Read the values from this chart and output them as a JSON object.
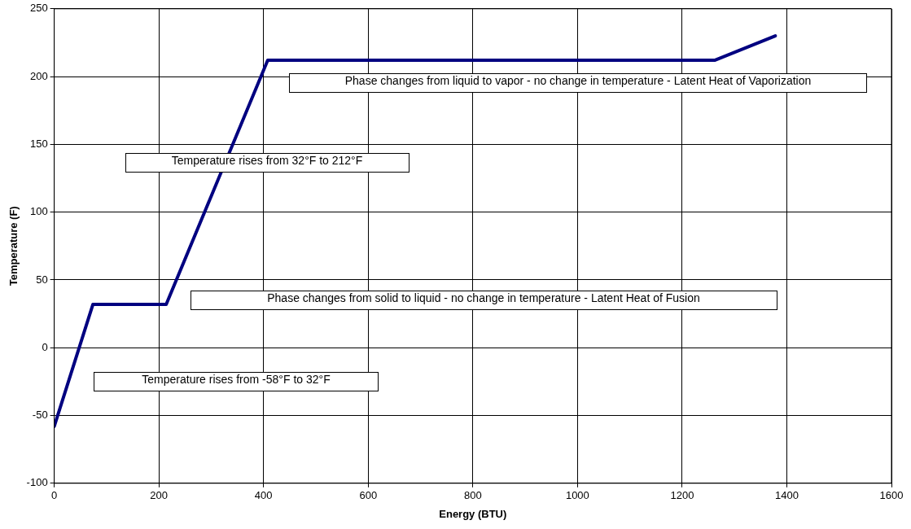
{
  "chart_data": {
    "type": "line",
    "xlabel": "Energy (BTU)",
    "ylabel": "Temperature (F)",
    "x": [
      0,
      74,
      214,
      408,
      1262,
      1378
    ],
    "series": [
      {
        "color": "#000080",
        "values": [
          -58,
          32,
          32,
          212,
          212,
          230
        ]
      }
    ],
    "xlim": [
      0,
      1600
    ],
    "xticks": [
      0,
      200,
      400,
      600,
      800,
      1000,
      1200,
      1400,
      1600
    ],
    "ylim": [
      -100,
      250
    ],
    "yticks": [
      -100,
      -50,
      0,
      50,
      100,
      150,
      200,
      250
    ],
    "grid": true,
    "legend": false,
    "marker": "none",
    "line_style": "solid",
    "annotations": [
      "Phase changes from liquid to vapor - no change in temperature - Latent Heat of Vaporization",
      "Temperature rises from 32°F to 212°F",
      "Phase changes from solid to liquid - no change in temperature - Latent Heat of Fusion",
      "Temperature rises from -58°F to 32°F"
    ]
  }
}
